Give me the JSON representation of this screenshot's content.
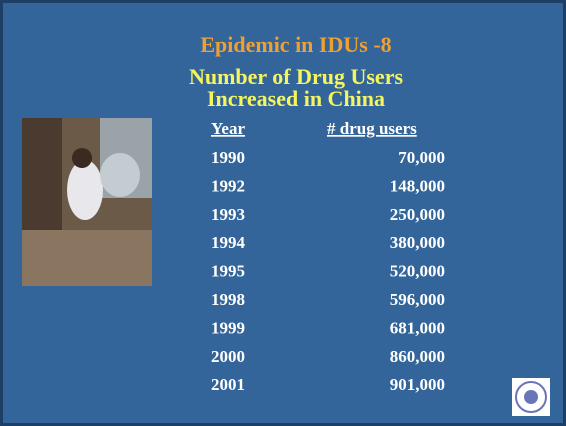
{
  "header": {
    "title": "Epidemic in IDUs -8",
    "subtitle": [
      "Number of Drug Users",
      "Increased in China"
    ]
  },
  "table": {
    "columns": [
      "Year",
      "# drug users"
    ],
    "rows": [
      [
        "1990",
        "70,000"
      ],
      [
        "1992",
        "148,000"
      ],
      [
        "1993",
        "250,000"
      ],
      [
        "1994",
        "380,000"
      ],
      [
        "1995",
        "520,000"
      ],
      [
        "1998",
        "596,000"
      ],
      [
        "1999",
        "681,000"
      ],
      [
        "2000",
        "860,000"
      ],
      [
        "2001",
        "901,000"
      ]
    ]
  }
}
